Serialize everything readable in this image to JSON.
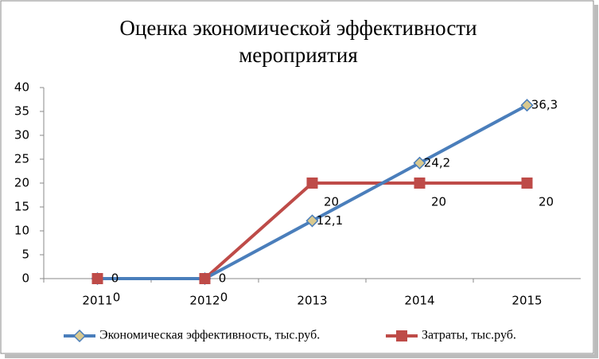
{
  "chart_data": {
    "type": "line",
    "title": "Оценка экономической эффективности мероприятия",
    "categories": [
      "2011",
      "2012",
      "2013",
      "2014",
      "2015"
    ],
    "series": [
      {
        "name": "Экономическая эффективность, тыс.руб.",
        "color": "#4a7ebb",
        "marker": "diamond",
        "marker_color": "#d9c98f",
        "values": [
          0,
          0,
          12.1,
          24.2,
          36.3
        ],
        "value_labels": [
          "0",
          "0",
          "12,1",
          "24,2",
          "36,3"
        ]
      },
      {
        "name": "Затраты, тыс.руб.",
        "color": "#be4b48",
        "marker": "square",
        "marker_color": "#be4b48",
        "values": [
          0,
          0,
          20,
          20,
          20
        ],
        "value_labels": [
          "0",
          "0",
          "20",
          "20",
          "20"
        ]
      }
    ],
    "ylim": [
      0,
      40
    ],
    "yticks": [
      0,
      5,
      10,
      15,
      20,
      25,
      30,
      35,
      40
    ],
    "grid": false,
    "legend": "bottom"
  }
}
